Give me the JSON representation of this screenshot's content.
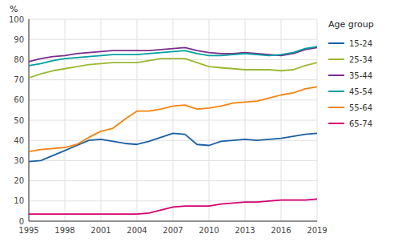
{
  "chart_data": {
    "type": "line",
    "y_label": "%",
    "legend_title": "Age group",
    "x": [
      1995,
      1996,
      1997,
      1998,
      1999,
      2000,
      2001,
      2002,
      2003,
      2004,
      2005,
      2006,
      2007,
      2008,
      2009,
      2010,
      2011,
      2012,
      2013,
      2014,
      2015,
      2016,
      2017,
      2018,
      2019
    ],
    "series": [
      {
        "name": "15-24",
        "color": "#1a5fa6",
        "values": [
          29.5,
          30.0,
          32.5,
          35.0,
          37.5,
          40.0,
          40.5,
          39.5,
          38.5,
          38.0,
          39.5,
          41.5,
          43.5,
          43.0,
          38.0,
          37.5,
          39.5,
          40.0,
          40.5,
          40.0,
          40.5,
          41.0,
          42.0,
          43.0,
          43.5
        ]
      },
      {
        "name": "25-34",
        "color": "#9ab832",
        "values": [
          71.0,
          73.0,
          74.5,
          75.5,
          76.5,
          77.5,
          78.0,
          78.5,
          78.5,
          78.5,
          79.5,
          80.5,
          80.5,
          80.5,
          78.5,
          76.5,
          76.0,
          75.5,
          75.0,
          75.0,
          75.0,
          74.5,
          75.0,
          77.0,
          78.5
        ]
      },
      {
        "name": "35-44",
        "color": "#7b2c8c",
        "values": [
          79.0,
          80.5,
          81.5,
          82.0,
          83.0,
          83.5,
          84.0,
          84.5,
          84.5,
          84.5,
          84.5,
          85.0,
          85.5,
          86.0,
          84.5,
          83.5,
          83.0,
          83.0,
          83.5,
          83.0,
          82.5,
          82.0,
          83.0,
          85.0,
          86.0
        ]
      },
      {
        "name": "45-54",
        "color": "#00a0a0",
        "values": [
          77.0,
          78.0,
          79.5,
          80.5,
          81.0,
          81.5,
          82.0,
          82.5,
          82.5,
          82.5,
          83.0,
          83.5,
          84.0,
          84.5,
          83.0,
          82.0,
          82.0,
          82.5,
          83.0,
          82.5,
          82.0,
          82.5,
          83.5,
          85.5,
          86.5
        ]
      },
      {
        "name": "55-64",
        "color": "#f5820f",
        "values": [
          34.5,
          35.5,
          36.0,
          36.5,
          38.0,
          41.5,
          44.5,
          46.0,
          50.5,
          54.5,
          54.5,
          55.5,
          57.0,
          57.5,
          55.5,
          56.0,
          57.0,
          58.5,
          59.0,
          59.5,
          61.0,
          62.5,
          63.5,
          65.5,
          66.5
        ]
      },
      {
        "name": "65-74",
        "color": "#d4006e",
        "values": [
          3.5,
          3.5,
          3.5,
          3.5,
          3.5,
          3.5,
          3.5,
          3.5,
          3.5,
          3.5,
          4.0,
          5.5,
          7.0,
          7.5,
          7.5,
          7.5,
          8.5,
          9.0,
          9.5,
          9.5,
          10.0,
          10.5,
          10.5,
          10.5,
          11.0
        ]
      }
    ],
    "xlim": [
      1995,
      2019
    ],
    "xticks": [
      1995,
      1998,
      2001,
      2004,
      2007,
      2010,
      2013,
      2016,
      2019
    ],
    "ylim": [
      0,
      100
    ],
    "yticks": [
      0,
      10,
      20,
      30,
      40,
      50,
      60,
      70,
      80,
      90,
      100
    ],
    "grid": true,
    "legend": "right"
  }
}
